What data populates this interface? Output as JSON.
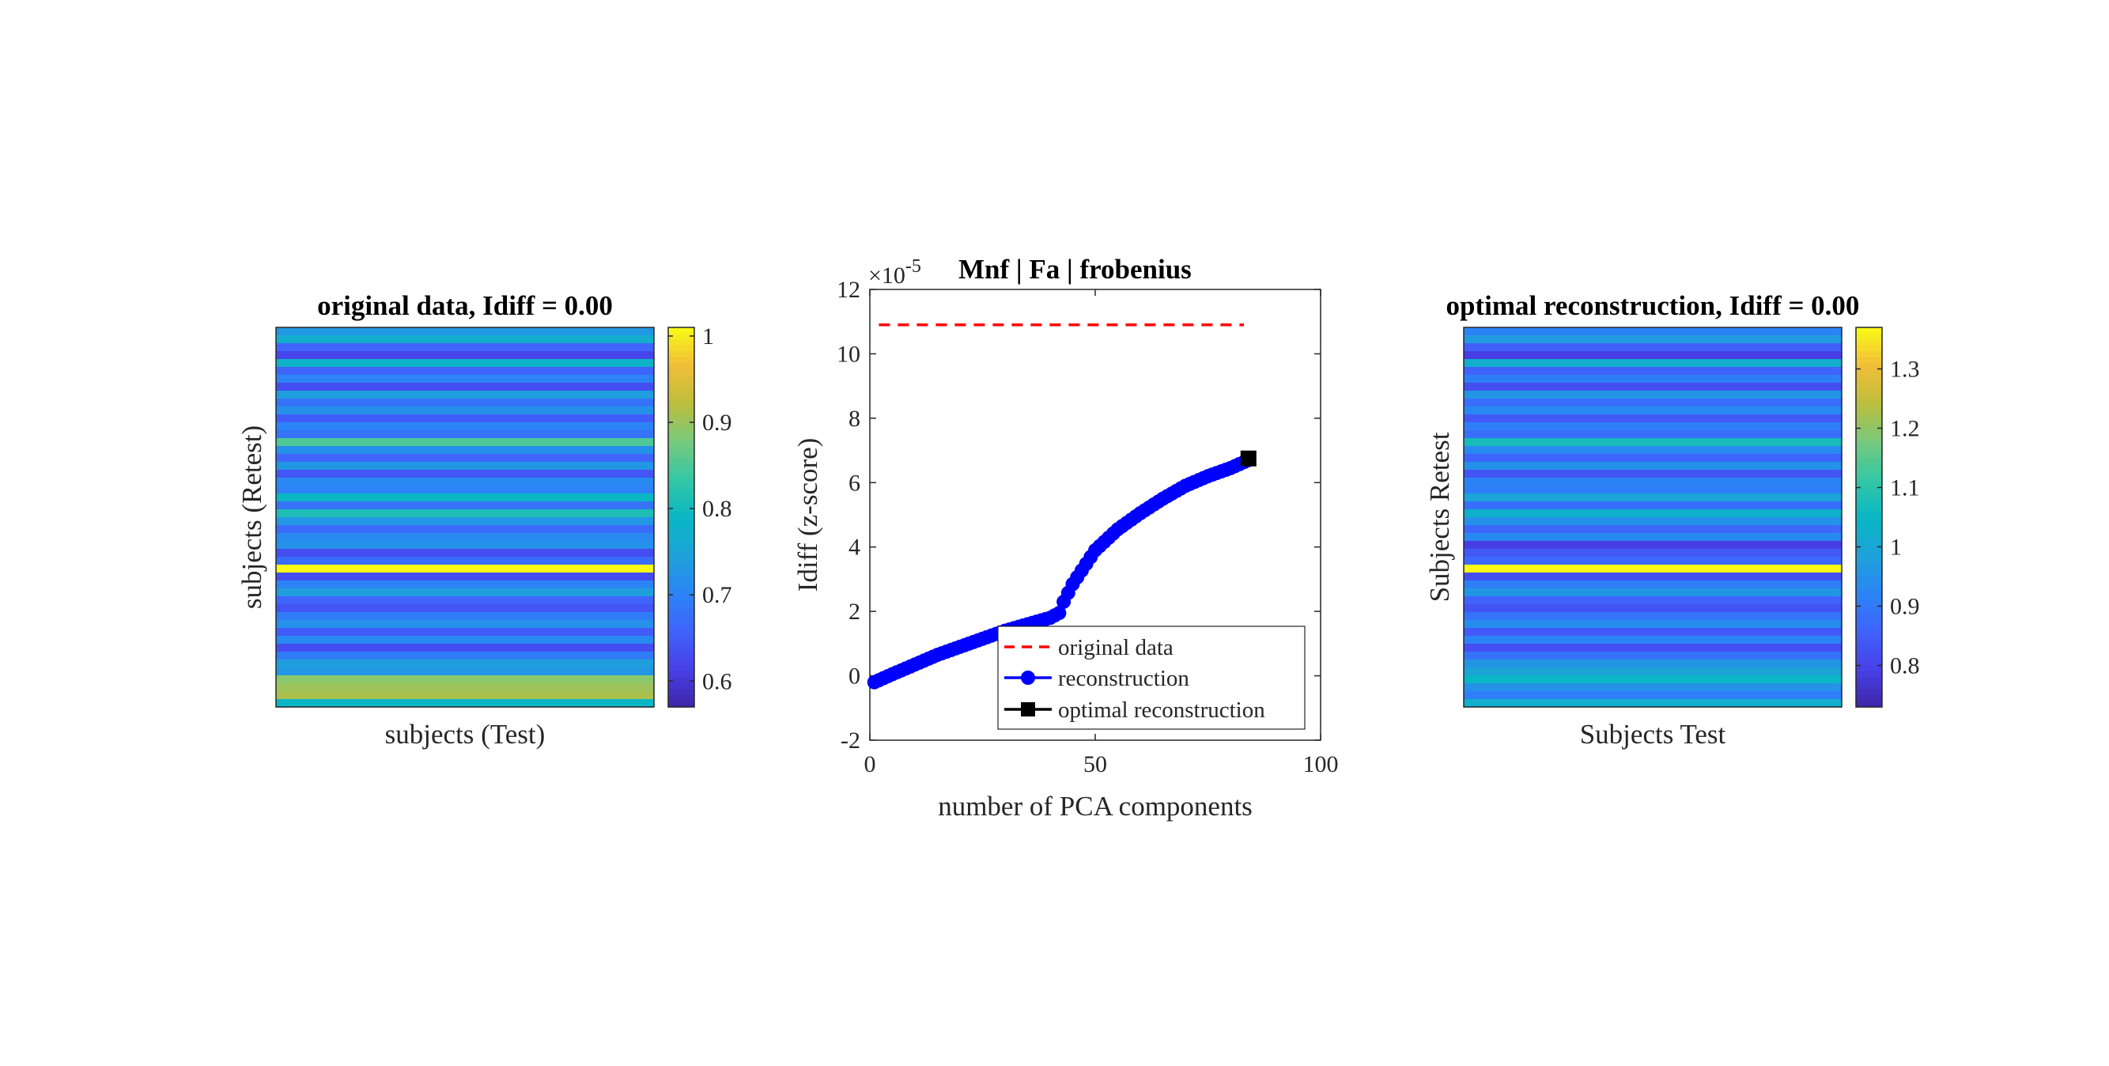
{
  "chart_data": [
    {
      "type": "heatmap",
      "title": "original data, Idiff = 0.00",
      "xlabel": "subjects (Test)",
      "ylabel": "subjects (Retest)",
      "colormap": "parula",
      "clim": [
        0.57,
        1.01
      ],
      "colorbar_ticks": [
        0.6,
        0.7,
        0.8,
        0.9,
        1
      ],
      "colorbar_tick_labels": [
        "0.6",
        "0.7",
        "0.8",
        "0.9",
        "1"
      ],
      "row_values": [
        0.73,
        0.77,
        0.66,
        0.62,
        0.78,
        0.66,
        0.7,
        0.63,
        0.74,
        0.68,
        0.72,
        0.65,
        0.7,
        0.68,
        0.85,
        0.72,
        0.66,
        0.73,
        0.64,
        0.71,
        0.7,
        0.79,
        0.68,
        0.81,
        0.73,
        0.67,
        0.71,
        0.72,
        0.63,
        0.67,
        1.01,
        0.63,
        0.7,
        0.74,
        0.66,
        0.64,
        0.69,
        0.72,
        0.65,
        0.71,
        0.63,
        0.69,
        0.74,
        0.73,
        0.89,
        0.9,
        0.91,
        0.79
      ]
    },
    {
      "type": "line",
      "title": "Mnf | Fa | frobenius",
      "xlabel": "number of PCA components",
      "ylabel": "Idiff (z-score)",
      "exponent_label": "×10",
      "exponent_value": "-5",
      "xlim": [
        0,
        100
      ],
      "ylim": [
        -2,
        12
      ],
      "xticks": [
        0,
        50,
        100
      ],
      "xtick_labels": [
        "0",
        "50",
        "100"
      ],
      "yticks": [
        -2,
        0,
        2,
        4,
        6,
        8,
        10,
        12
      ],
      "ytick_labels": [
        "-2",
        "0",
        "2",
        "4",
        "6",
        "8",
        "10",
        "12"
      ],
      "grid": false,
      "legend_location": "bottom-right",
      "colors": {
        "original": "#ff0000",
        "reconstruction": "#0000ff",
        "optimal": "#000000"
      },
      "series": [
        {
          "name": "original data",
          "style": "dashed",
          "x": [
            2,
            83
          ],
          "y": [
            10.9,
            10.9
          ]
        },
        {
          "name": "reconstruction",
          "style": "line-circle",
          "x": [
            1,
            5,
            10,
            15,
            20,
            25,
            30,
            35,
            40,
            42,
            43,
            45,
            50,
            55,
            60,
            65,
            70,
            75,
            80,
            84
          ],
          "y": [
            -0.2,
            0.05,
            0.35,
            0.65,
            0.9,
            1.15,
            1.4,
            1.6,
            1.8,
            1.95,
            2.3,
            2.85,
            3.9,
            4.55,
            5.05,
            5.5,
            5.9,
            6.2,
            6.45,
            6.7
          ]
        },
        {
          "name": "optimal reconstruction",
          "style": "square-marker",
          "x": [
            84
          ],
          "y": [
            6.75
          ]
        }
      ]
    },
    {
      "type": "heatmap",
      "title": "optimal reconstruction, Idiff = 0.00",
      "xlabel": "Subjects Test",
      "ylabel": "Subjects Retest",
      "colormap": "parula",
      "clim": [
        0.73,
        1.37
      ],
      "colorbar_ticks": [
        0.8,
        0.9,
        1,
        1.1,
        1.2,
        1.3
      ],
      "colorbar_tick_labels": [
        "0.8",
        "0.9",
        "1",
        "1.1",
        "1.2",
        "1.3"
      ],
      "row_values": [
        0.92,
        0.97,
        0.85,
        0.79,
        1.02,
        0.86,
        0.91,
        0.82,
        0.96,
        0.88,
        0.93,
        0.84,
        0.91,
        0.88,
        1.07,
        0.93,
        0.86,
        0.95,
        0.83,
        0.92,
        0.91,
        0.99,
        0.88,
        1.03,
        0.95,
        0.87,
        0.93,
        0.79,
        0.84,
        0.87,
        1.37,
        0.82,
        0.91,
        0.96,
        0.86,
        0.83,
        0.89,
        0.94,
        0.84,
        0.92,
        0.82,
        0.89,
        0.96,
        0.99,
        1.05,
        0.95,
        0.91,
        1.02
      ]
    }
  ]
}
